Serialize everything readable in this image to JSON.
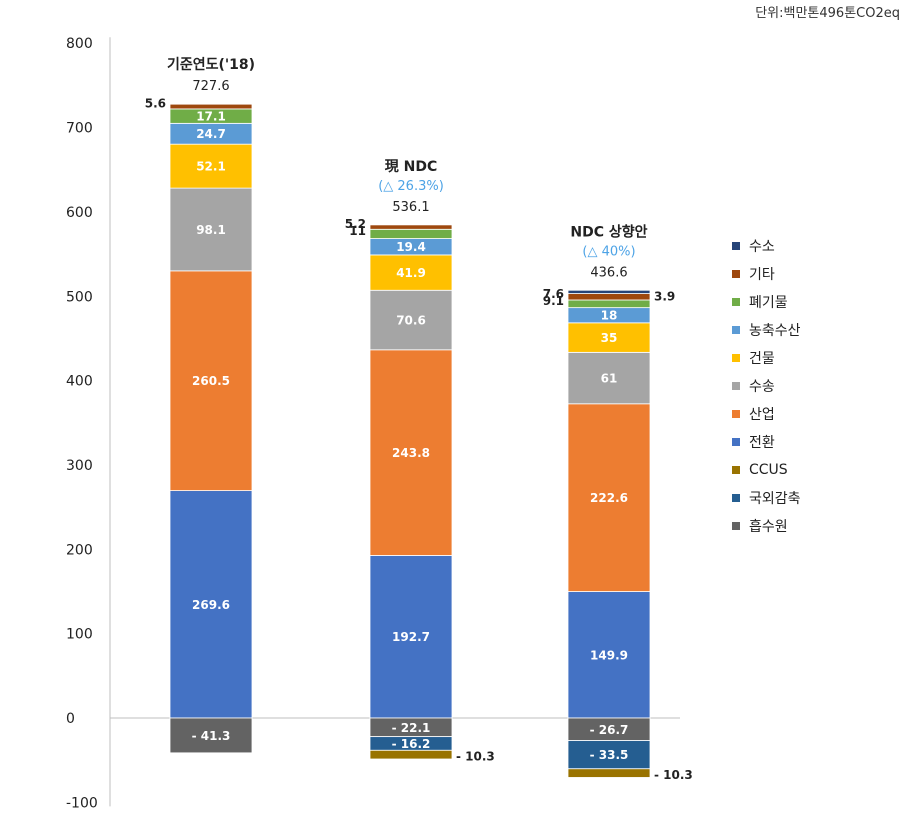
{
  "unit_label": "단위:백만톤496톤CO2eq",
  "colors": {
    "axis": "#bfbfbf",
    "top_note": "#4da3e6",
    "value_label_dark": "#222222",
    "value_label_light": "#ffffff"
  },
  "chart_data": {
    "type": "bar",
    "stacked": true,
    "title": "",
    "xlabel": "",
    "ylabel": "",
    "ylim": [
      -100,
      800
    ],
    "yticks": [
      800,
      700,
      600,
      500,
      400,
      300,
      200,
      100,
      0,
      -100
    ],
    "grid": false,
    "legend_position": "right",
    "categories": [
      {
        "label": "기준연도('18)",
        "note": "",
        "total": "727.6"
      },
      {
        "label": "現 NDC",
        "note": "(△ 26.3%)",
        "total": "536.1"
      },
      {
        "label": "NDC 상향안",
        "note": "(△ 40%)",
        "total": "436.6"
      }
    ],
    "series": [
      {
        "name": "전환",
        "color": "#4472c4",
        "values": [
          269.6,
          192.7,
          149.9
        ],
        "labels": [
          "269.6",
          "192.7",
          "149.9"
        ]
      },
      {
        "name": "산업",
        "color": "#ed7d31",
        "values": [
          260.5,
          243.8,
          222.6
        ],
        "labels": [
          "260.5",
          "243.8",
          "222.6"
        ]
      },
      {
        "name": "수송",
        "color": "#a5a5a5",
        "values": [
          98.1,
          70.6,
          61
        ],
        "labels": [
          "98.1",
          "70.6",
          "61"
        ]
      },
      {
        "name": "건물",
        "color": "#ffc000",
        "values": [
          52.1,
          41.9,
          35
        ],
        "labels": [
          "52.1",
          "41.9",
          "35"
        ]
      },
      {
        "name": "농축수산",
        "color": "#5b9bd5",
        "values": [
          24.7,
          19.4,
          18
        ],
        "labels": [
          "24.7",
          "19.4",
          "18"
        ]
      },
      {
        "name": "폐기물",
        "color": "#70ad47",
        "values": [
          17.1,
          11,
          9.1
        ],
        "labels": [
          "17.1",
          "11",
          "9.1"
        ]
      },
      {
        "name": "기타",
        "color": "#9e480e",
        "values": [
          5.6,
          5.2,
          7.6
        ],
        "labels": [
          "5.6",
          "5.2",
          "7.6"
        ]
      },
      {
        "name": "수소",
        "color": "#264478",
        "values": [
          0,
          0,
          3.9
        ],
        "labels": [
          "",
          "",
          "3.9"
        ]
      },
      {
        "name": "흡수원",
        "color": "#636363",
        "values": [
          -41.3,
          -22.1,
          -26.7
        ],
        "labels": [
          "- 41.3",
          "- 22.1",
          "- 26.7"
        ]
      },
      {
        "name": "국외감축",
        "color": "#255e91",
        "values": [
          0,
          -16.2,
          -33.5
        ],
        "labels": [
          "",
          "- 16.2",
          "- 33.5"
        ]
      },
      {
        "name": "CCUS",
        "color": "#997300",
        "values": [
          0,
          -10.3,
          -10.3
        ],
        "labels": [
          "",
          "- 10.3",
          "- 10.3"
        ]
      }
    ],
    "legend_order": [
      "수소",
      "기타",
      "폐기물",
      "농축수산",
      "건물",
      "수송",
      "산업",
      "전환",
      "CCUS",
      "국외감축",
      "흡수원"
    ]
  }
}
